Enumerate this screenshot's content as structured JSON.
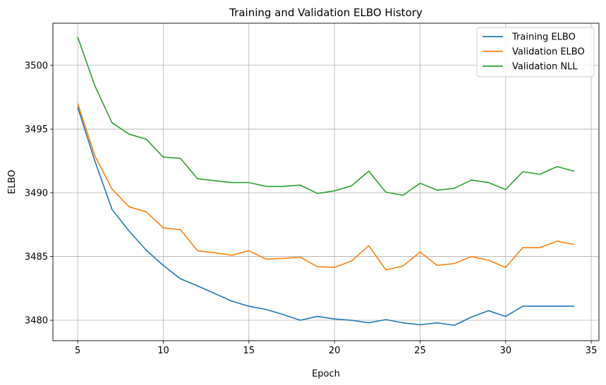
{
  "chart_data": {
    "type": "line",
    "title": "Training and Validation ELBO History",
    "xlabel": "Epoch",
    "ylabel": "ELBO",
    "xlim": [
      3.55,
      35.45
    ],
    "ylim": [
      3478.4,
      3503.3
    ],
    "x_ticks": [
      5,
      10,
      15,
      20,
      25,
      30,
      35
    ],
    "y_ticks": [
      3480,
      3485,
      3490,
      3495,
      3500
    ],
    "grid": true,
    "legend_position": "top-right",
    "x": [
      5,
      6,
      7,
      8,
      9,
      10,
      11,
      12,
      13,
      14,
      15,
      16,
      17,
      18,
      19,
      20,
      21,
      22,
      23,
      24,
      25,
      26,
      27,
      28,
      29,
      30,
      31,
      32,
      33,
      34
    ],
    "series": [
      {
        "name": "Training ELBO",
        "color": "#1f77b4",
        "values": [
          3496.7,
          3492.5,
          3488.7,
          3487.0,
          3485.5,
          3484.3,
          3483.25,
          3482.7,
          3482.1,
          3481.5,
          3481.1,
          3480.85,
          3480.45,
          3480.0,
          3480.3,
          3480.1,
          3480.0,
          3479.8,
          3480.05,
          3479.8,
          3479.65,
          3479.8,
          3479.6,
          3480.25,
          3480.75,
          3480.3,
          3481.1,
          3481.1,
          3481.1,
          3481.1
        ]
      },
      {
        "name": "Validation ELBO",
        "color": "#ff7f0e",
        "values": [
          3497.0,
          3492.9,
          3490.3,
          3488.9,
          3488.5,
          3487.25,
          3487.1,
          3485.45,
          3485.3,
          3485.1,
          3485.45,
          3484.8,
          3484.85,
          3484.95,
          3484.2,
          3484.15,
          3484.65,
          3485.85,
          3483.95,
          3484.25,
          3485.35,
          3484.3,
          3484.45,
          3485.0,
          3484.7,
          3484.15,
          3485.7,
          3485.7,
          3486.2,
          3485.95
        ]
      },
      {
        "name": "Validation NLL",
        "color": "#2ca02c",
        "values": [
          3502.2,
          3498.4,
          3495.5,
          3494.6,
          3494.2,
          3492.8,
          3492.7,
          3491.1,
          3490.95,
          3490.8,
          3490.8,
          3490.5,
          3490.5,
          3490.6,
          3489.95,
          3490.15,
          3490.55,
          3491.7,
          3490.05,
          3489.8,
          3490.75,
          3490.2,
          3490.35,
          3491.0,
          3490.8,
          3490.25,
          3491.65,
          3491.45,
          3492.05,
          3491.7
        ]
      }
    ]
  }
}
